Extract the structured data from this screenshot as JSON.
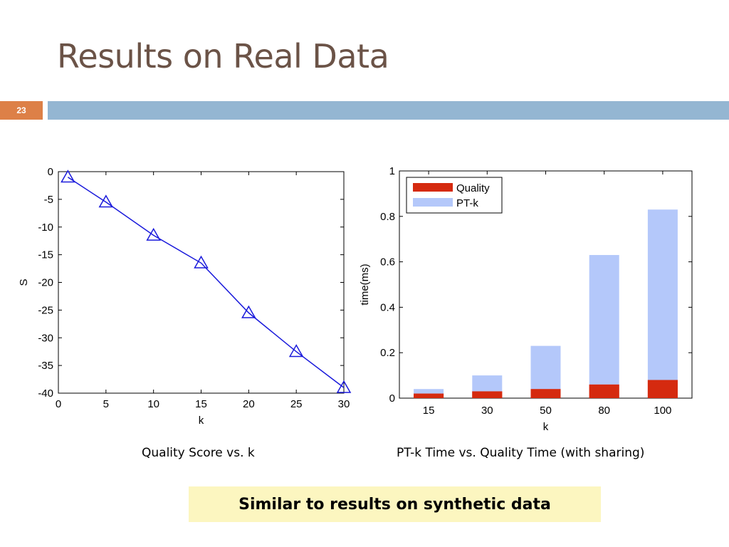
{
  "slide": {
    "title": "Results on Real Data",
    "number": "23",
    "colors": {
      "title": "#6b5347",
      "number_box": "#dd8047",
      "rule_bar": "#94b6d2",
      "callout_bg": "#fcf6c0"
    }
  },
  "captions": {
    "left": "Quality Score vs. k",
    "right": "PT-k Time vs. Quality Time (with sharing)"
  },
  "callout": "Similar to results on synthetic data",
  "chart_data": [
    {
      "type": "line",
      "xlabel": "k",
      "ylabel": "S",
      "xlim": [
        0,
        30
      ],
      "ylim": [
        -40,
        0
      ],
      "x_ticks": [
        0,
        5,
        10,
        15,
        20,
        25,
        30
      ],
      "y_ticks": [
        0,
        -5,
        -10,
        -15,
        -20,
        -25,
        -30,
        -35,
        -40
      ],
      "x": [
        1,
        5,
        10,
        15,
        20,
        25,
        30
      ],
      "series": [
        {
          "values": [
            -1,
            -5.5,
            -11.5,
            -16.5,
            -25.5,
            -32.5,
            -39
          ],
          "color": "#1a1adb",
          "marker": "triangle"
        }
      ],
      "grid": false
    },
    {
      "type": "bar",
      "stacked": true,
      "xlabel": "k",
      "ylabel": "time(ms)",
      "categories": [
        "15",
        "30",
        "50",
        "80",
        "100"
      ],
      "ylim": [
        0,
        1
      ],
      "y_ticks": [
        0,
        0.2,
        0.4,
        0.6,
        0.8,
        1
      ],
      "y_tick_labels": [
        "0",
        "0.2",
        "0.4",
        "0.6",
        "0.8",
        "1"
      ],
      "series": [
        {
          "name": "Quality",
          "values": [
            0.02,
            0.03,
            0.04,
            0.06,
            0.08
          ],
          "color": "#d52a0f"
        },
        {
          "name": "PT-k",
          "values": [
            0.04,
            0.1,
            0.23,
            0.63,
            0.83
          ],
          "color": "#b4c8fa"
        }
      ],
      "legend": "top-left",
      "grid": false
    }
  ]
}
